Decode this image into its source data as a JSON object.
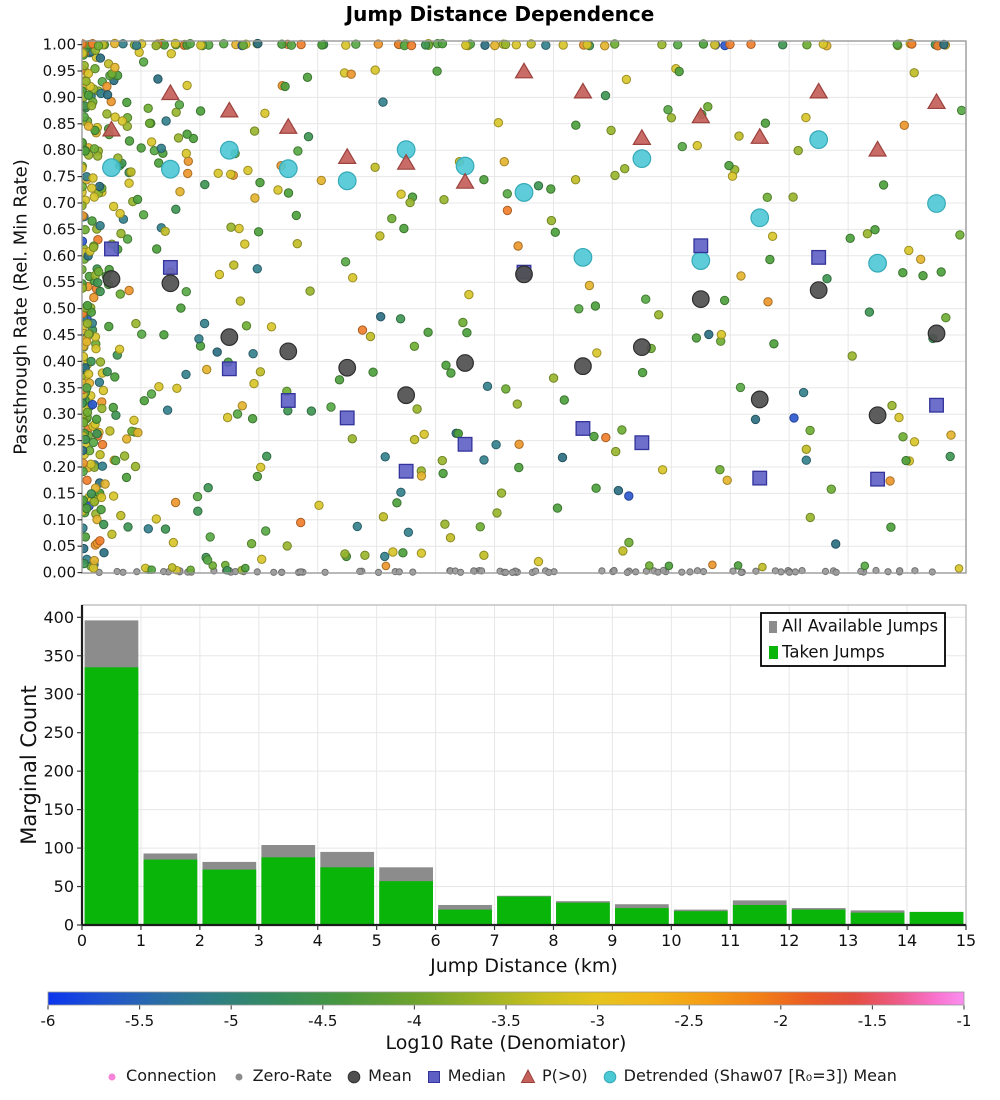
{
  "title": "Jump Distance Dependence",
  "scatter": {
    "ylabel": "Passthrough Rate (Rel. Min Rate)"
  },
  "histogram": {
    "ylabel": "Marginal Count",
    "xlabel": "Jump Distance (km)",
    "legend": [
      {
        "label": "All Available Jumps",
        "color": "#8c8c8c"
      },
      {
        "label": "Taken Jumps",
        "color": "#09b509"
      }
    ]
  },
  "colorbar": {
    "label": "Log10 Rate (Denomiator)",
    "range": [
      -6,
      -1
    ],
    "ticks": [
      "-6",
      "-5.5",
      "-5",
      "-4.5",
      "-4",
      "-3.5",
      "-3",
      "-2.5",
      "-2",
      "-1.5",
      "-1"
    ],
    "gradient": [
      [
        "0%",
        "#0b35ee"
      ],
      [
        "6%",
        "#1f53cf"
      ],
      [
        "12%",
        "#2a6ca8"
      ],
      [
        "18%",
        "#2e7e85"
      ],
      [
        "24%",
        "#338a64"
      ],
      [
        "32%",
        "#47973f"
      ],
      [
        "40%",
        "#6da32d"
      ],
      [
        "48%",
        "#a0b424"
      ],
      [
        "54%",
        "#c8bf1e"
      ],
      [
        "60%",
        "#e6c41d"
      ],
      [
        "66%",
        "#f2b618"
      ],
      [
        "72%",
        "#f49c14"
      ],
      [
        "78%",
        "#f17d17"
      ],
      [
        "83%",
        "#ea5c25"
      ],
      [
        "88%",
        "#e44d3f"
      ],
      [
        "93%",
        "#ee5b8b"
      ],
      [
        "97%",
        "#f973cf"
      ],
      [
        "100%",
        "#fb8ef0"
      ]
    ]
  },
  "marker_legend": [
    {
      "label": "Connection",
      "marker": "smalldot",
      "color": "#f583d8"
    },
    {
      "label": "Zero-Rate",
      "marker": "smalldot",
      "color": "#8c8c8c"
    },
    {
      "label": "Mean",
      "marker": "circle",
      "color": "#4f4f4f",
      "edge": "#303030"
    },
    {
      "label": "Median",
      "marker": "square",
      "color": "#5d5fc5",
      "edge": "#33339b"
    },
    {
      "label": "P(>0)",
      "marker": "triangle",
      "color": "#c4605a",
      "edge": "#9c413d"
    },
    {
      "label": "Detrended (Shaw07 [R₀=3]) Mean",
      "marker": "circle",
      "color": "#4cc8d5",
      "edge": "#36aab8"
    }
  ],
  "chart_data": [
    {
      "type": "scatter",
      "title": "Jump Distance Dependence",
      "xlabel": "Jump Distance (km)",
      "ylabel": "Passthrough Rate (Rel. Min Rate)",
      "xlim": [
        0,
        15
      ],
      "ylim": [
        0,
        1
      ],
      "grid": true,
      "yticks": [
        "0.00",
        "0.05",
        "0.10",
        "0.15",
        "0.20",
        "0.25",
        "0.30",
        "0.35",
        "0.40",
        "0.45",
        "0.50",
        "0.55",
        "0.60",
        "0.65",
        "0.70",
        "0.75",
        "0.80",
        "0.85",
        "0.90",
        "0.95",
        "1.00"
      ],
      "bin_centers": [
        0.5,
        1.5,
        2.5,
        3.5,
        4.5,
        5.5,
        6.5,
        7.5,
        8.5,
        9.5,
        10.5,
        11.5,
        12.5,
        13.5,
        14.5
      ],
      "series": [
        {
          "name": "Mean",
          "marker": "circle",
          "color": "#4f4f4f",
          "values": [
            0.556,
            0.548,
            0.446,
            0.419,
            0.388,
            0.336,
            0.397,
            0.565,
            0.391,
            0.427,
            0.518,
            0.328,
            0.535,
            0.298,
            0.453
          ]
        },
        {
          "name": "Median",
          "marker": "square",
          "color": "#5d5fc5",
          "values": [
            0.613,
            0.578,
            0.386,
            0.326,
            0.293,
            0.192,
            0.243,
            0.569,
            0.273,
            0.246,
            0.619,
            0.179,
            0.597,
            0.177,
            0.317
          ]
        },
        {
          "name": "P(>0)",
          "marker": "triangle",
          "color": "#c4605a",
          "values": [
            0.839,
            0.908,
            0.875,
            0.844,
            0.787,
            0.776,
            0.74,
            0.949,
            0.911,
            0.823,
            0.864,
            0.825,
            0.911,
            0.801,
            0.891
          ]
        },
        {
          "name": "Detrended (Shaw07 [R₀=3]) Mean",
          "marker": "circle",
          "color": "#4cc8d5",
          "values": [
            0.767,
            0.764,
            0.8,
            0.765,
            0.742,
            0.801,
            0.77,
            0.72,
            0.597,
            0.784,
            0.591,
            0.672,
            0.82,
            0.586,
            0.699
          ]
        }
      ],
      "background_points": {
        "name": "Connection",
        "description": "dense pseudo-random cloud of small dots colored by Log10 Rate; very dense near x=0, dense row at y=1.0, gray Zero-Rate dots along y=0",
        "colormap_label": "Log10 Rate (Denomiator)"
      }
    },
    {
      "type": "bar",
      "stacked": false,
      "bin_edges": [
        0,
        1,
        2,
        3,
        4,
        5,
        6,
        7,
        8,
        9,
        10,
        11,
        12,
        13,
        14,
        15
      ],
      "categories": [
        "0-1",
        "1-2",
        "2-3",
        "3-4",
        "4-5",
        "5-6",
        "6-7",
        "7-8",
        "8-9",
        "9-10",
        "10-11",
        "11-12",
        "12-13",
        "13-14",
        "14-15"
      ],
      "series": [
        {
          "name": "All Available Jumps",
          "color": "#8c8c8c",
          "values": [
            396,
            93,
            82,
            104,
            95,
            75,
            26,
            38,
            31,
            27,
            20,
            32,
            22,
            19,
            17
          ]
        },
        {
          "name": "Taken Jumps",
          "color": "#09b509",
          "values": [
            335,
            85,
            72,
            88,
            75,
            57,
            20,
            37,
            29,
            22,
            18,
            26,
            20,
            16,
            17
          ]
        }
      ],
      "xlabel": "Jump Distance (km)",
      "ylabel": "Marginal Count",
      "ylim": [
        0,
        416
      ],
      "yticks": [
        "0",
        "50",
        "100",
        "150",
        "200",
        "250",
        "300",
        "350",
        "400"
      ],
      "xticks": [
        "0",
        "1",
        "2",
        "3",
        "4",
        "5",
        "6",
        "7",
        "8",
        "9",
        "10",
        "11",
        "12",
        "13",
        "14",
        "15"
      ],
      "grid": true,
      "legend_position": "upper right"
    },
    {
      "type": "colorbar",
      "label": "Log10 Rate (Denomiator)",
      "range": [
        -6,
        -1
      ],
      "ticks": [
        -6,
        -5.5,
        -5,
        -4.5,
        -4,
        -3.5,
        -3,
        -2.5,
        -2,
        -1.5,
        -1
      ]
    }
  ],
  "render": {
    "seed": 9,
    "dot_radius": 4.2,
    "zero_color": "#9a9a9a",
    "dot_palette": [
      [
        "#4da03c",
        14
      ],
      [
        "#3f9554",
        6
      ],
      [
        "#6fae35",
        9
      ],
      [
        "#98b52e",
        10
      ],
      [
        "#c0bd26",
        6
      ],
      [
        "#d8c52b",
        12
      ],
      [
        "#e3b42e",
        6
      ],
      [
        "#eb962d",
        3
      ],
      [
        "#35818d",
        7
      ],
      [
        "#2d6f82",
        3
      ],
      [
        "#58a847",
        8
      ],
      [
        "#2c59cf",
        1
      ],
      [
        "#ef7f2e",
        1.5
      ]
    ],
    "left_palette": [
      [
        "#4da03c",
        9
      ],
      [
        "#6fae35",
        7
      ],
      [
        "#98b52e",
        8
      ],
      [
        "#d8c52b",
        12
      ],
      [
        "#e3b42e",
        9
      ],
      [
        "#eb962d",
        6
      ],
      [
        "#ef7f2e",
        4
      ],
      [
        "#35818d",
        6
      ],
      [
        "#3f9554",
        6
      ],
      [
        "#2d6f82",
        2
      ],
      [
        "#2c59cf",
        1
      ]
    ],
    "cloud": {
      "field": {
        "count": 380,
        "x_power": 2.05
      },
      "upper_left": {
        "count": 30
      },
      "left_column": {
        "count": 150,
        "x_max": 0.35
      },
      "top_row": {
        "count": 88,
        "x_power": 1.7
      },
      "zero_gray": {
        "count": 90
      },
      "zero_colored": {
        "count": 22
      }
    }
  }
}
